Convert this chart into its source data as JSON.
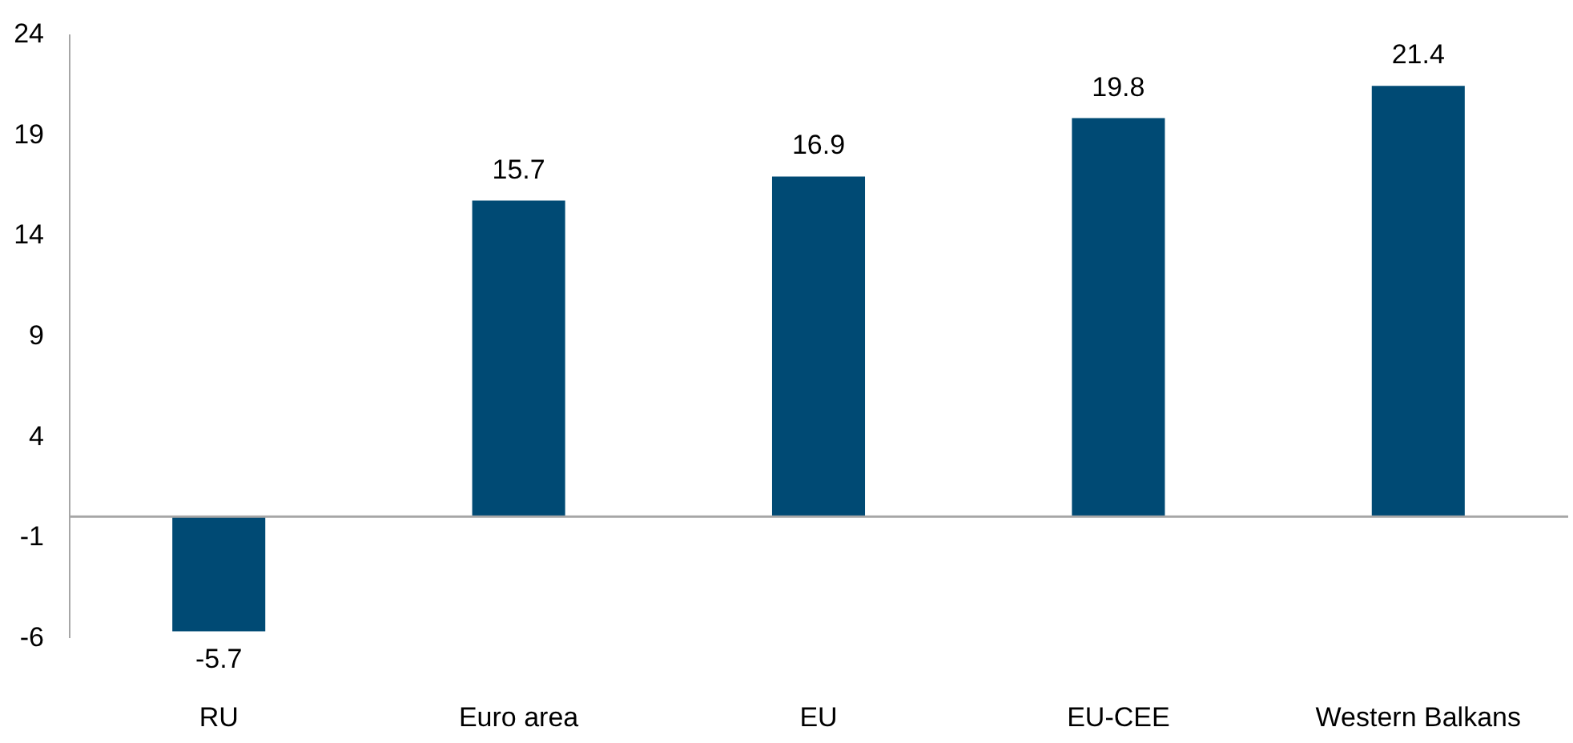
{
  "chart_data": {
    "type": "bar",
    "categories": [
      "RU",
      "Euro area",
      "EU",
      "EU-CEE",
      "Western Balkans"
    ],
    "values": [
      -5.7,
      15.7,
      16.9,
      19.8,
      21.4
    ],
    "color": "#004a74",
    "ylim": [
      -6,
      24
    ],
    "yticks": [
      -6,
      -1,
      4,
      9,
      14,
      19,
      24
    ],
    "grid": false,
    "data_labels": true
  }
}
